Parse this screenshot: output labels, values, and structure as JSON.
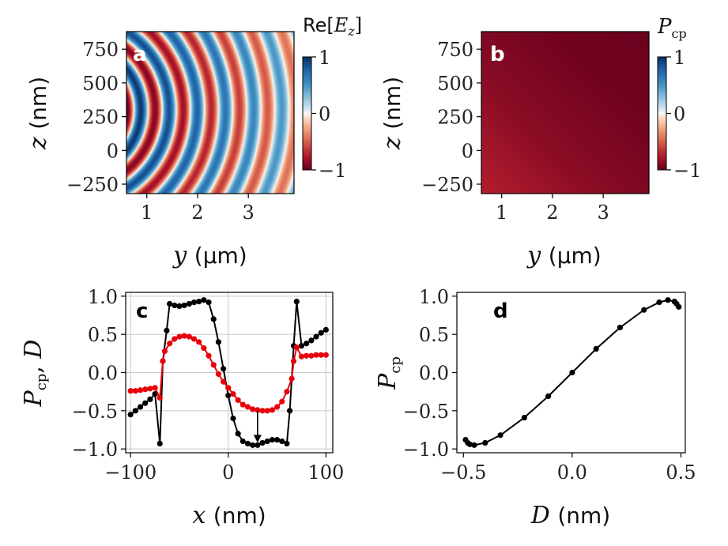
{
  "chart_data": [
    {
      "panel": "a",
      "type": "heatmap",
      "panel_label": "a",
      "xlabel_symbol": "y",
      "xlabel_unit": "(μm)",
      "ylabel_symbol": "z",
      "ylabel_unit": "(nm)",
      "colorbar_label": "Re[E_z]",
      "colorbar_label_prefix": "Re[",
      "colorbar_label_var": "E",
      "colorbar_label_sub": "z",
      "colorbar_label_suffix": "]",
      "xlim": [
        0.6,
        3.9
      ],
      "ylim": [
        -320,
        880
      ],
      "xticks": [
        1,
        2,
        3
      ],
      "xtick_labels": [
        "1",
        "2",
        "3"
      ],
      "yticks": [
        -250,
        0,
        250,
        500,
        750
      ],
      "ytick_labels": [
        "−250",
        "0",
        "250",
        "500",
        "750"
      ],
      "clim": [
        -1,
        1
      ],
      "colorbar_ticks": [
        1,
        0,
        -1
      ],
      "colorbar_tick_labels": [
        "1",
        "0",
        "−1"
      ],
      "colormap": "RdBu",
      "pattern": "curved wavefronts spreading from source near y≈0.6 μm, z≈300 nm; wavelength ≈0.55 μm, amplitude decaying with distance"
    },
    {
      "panel": "b",
      "type": "heatmap",
      "panel_label": "b",
      "xlabel_symbol": "y",
      "xlabel_unit": "(μm)",
      "ylabel_symbol": "z",
      "ylabel_unit": "(nm)",
      "colorbar_label_var": "P",
      "colorbar_label_sub": "cp",
      "xlim": [
        0.6,
        3.9
      ],
      "ylim": [
        -320,
        880
      ],
      "xticks": [
        1,
        2,
        3
      ],
      "xtick_labels": [
        "1",
        "2",
        "3"
      ],
      "yticks": [
        -250,
        0,
        250,
        500,
        750
      ],
      "ytick_labels": [
        "−250",
        "0",
        "250",
        "500",
        "750"
      ],
      "clim": [
        -1,
        1
      ],
      "colorbar_ticks": [
        1,
        0,
        -1
      ],
      "colorbar_tick_labels": [
        "1",
        "0",
        "−1"
      ],
      "colormap": "RdBu",
      "pattern": "nearly uniform P_cp ≈ −0.95, slightly lighter (≈ −0.85) toward bottom-left"
    },
    {
      "panel": "c",
      "type": "line",
      "panel_label": "c",
      "xlabel_symbol": "x",
      "xlabel_unit": "(nm)",
      "ylabel_var1": "P",
      "ylabel_sub1": "cp",
      "ylabel_sep": ",",
      "ylabel_var2": "D",
      "xlim": [
        -105,
        107
      ],
      "ylim": [
        -1.05,
        1.05
      ],
      "grid": true,
      "xticks": [
        -100,
        0,
        100
      ],
      "xtick_labels": [
        "−100",
        "0",
        "100"
      ],
      "yticks": [
        -1.0,
        -0.5,
        0.0,
        0.5,
        1.0
      ],
      "ytick_labels": [
        "−1.0",
        "−0.5",
        "0.0",
        "0.5",
        "1.0"
      ],
      "annotation_arrow": {
        "x": 30,
        "y_from": -0.5,
        "y_to": -0.92
      },
      "series": [
        {
          "color": "#000000",
          "x": [
            -100,
            -95,
            -90,
            -85,
            -80,
            -75,
            -70,
            -67,
            -63,
            -60,
            -55,
            -50,
            -45,
            -40,
            -35,
            -30,
            -25,
            -20,
            -15,
            -10,
            -5,
            0,
            5,
            10,
            15,
            20,
            25,
            30,
            35,
            40,
            45,
            50,
            55,
            60,
            63,
            67,
            70,
            75,
            80,
            85,
            90,
            95,
            100
          ],
          "y": [
            -0.55,
            -0.5,
            -0.45,
            -0.4,
            -0.35,
            -0.28,
            -0.93,
            0.15,
            0.55,
            0.9,
            0.88,
            0.87,
            0.88,
            0.9,
            0.92,
            0.93,
            0.95,
            0.92,
            0.7,
            0.4,
            0.05,
            -0.3,
            -0.6,
            -0.8,
            -0.9,
            -0.93,
            -0.95,
            -0.95,
            -0.92,
            -0.9,
            -0.88,
            -0.88,
            -0.9,
            -0.93,
            -0.5,
            0.35,
            0.93,
            0.35,
            0.38,
            0.42,
            0.47,
            0.52,
            0.56
          ]
        },
        {
          "color": "#e8000b",
          "x": [
            -100,
            -95,
            -90,
            -85,
            -80,
            -75,
            -70,
            -67,
            -65,
            -60,
            -55,
            -50,
            -45,
            -40,
            -35,
            -30,
            -25,
            -20,
            -15,
            -10,
            -5,
            0,
            5,
            10,
            15,
            20,
            25,
            30,
            35,
            40,
            45,
            50,
            55,
            60,
            65,
            67,
            70,
            75,
            80,
            85,
            90,
            95,
            100
          ],
          "y": [
            -0.24,
            -0.24,
            -0.23,
            -0.22,
            -0.21,
            -0.2,
            -0.33,
            0.15,
            0.28,
            0.38,
            0.44,
            0.47,
            0.48,
            0.47,
            0.44,
            0.4,
            0.32,
            0.22,
            0.1,
            -0.02,
            -0.12,
            -0.2,
            -0.28,
            -0.36,
            -0.42,
            -0.45,
            -0.48,
            -0.49,
            -0.5,
            -0.5,
            -0.49,
            -0.45,
            -0.38,
            -0.25,
            -0.08,
            0.15,
            0.33,
            0.21,
            0.22,
            0.22,
            0.23,
            0.23,
            0.23
          ]
        }
      ]
    },
    {
      "panel": "d",
      "type": "line",
      "panel_label": "d",
      "xlabel_symbol": "D",
      "xlabel_unit": "(nm)",
      "ylabel_var": "P",
      "ylabel_sub": "cp",
      "xlim": [
        -0.53,
        0.52
      ],
      "ylim": [
        -1.05,
        1.05
      ],
      "grid": false,
      "xticks": [
        -0.5,
        0.0,
        0.5
      ],
      "xtick_labels": [
        "−0.5",
        "0.0",
        "0.5"
      ],
      "yticks": [
        -1.0,
        -0.5,
        0.0,
        0.5,
        1.0
      ],
      "ytick_labels": [
        "−1.0",
        "−0.5",
        "0.0",
        "0.5",
        "1.0"
      ],
      "series": [
        {
          "color": "#000000",
          "x": [
            -0.49,
            -0.48,
            -0.47,
            -0.45,
            -0.4,
            -0.33,
            -0.22,
            -0.11,
            0.0,
            0.11,
            0.22,
            0.33,
            0.4,
            0.44,
            0.47,
            0.48,
            0.49
          ],
          "y": [
            -0.88,
            -0.92,
            -0.94,
            -0.95,
            -0.92,
            -0.82,
            -0.59,
            -0.31,
            0.0,
            0.31,
            0.59,
            0.82,
            0.92,
            0.95,
            0.93,
            0.9,
            0.86
          ]
        }
      ]
    }
  ]
}
